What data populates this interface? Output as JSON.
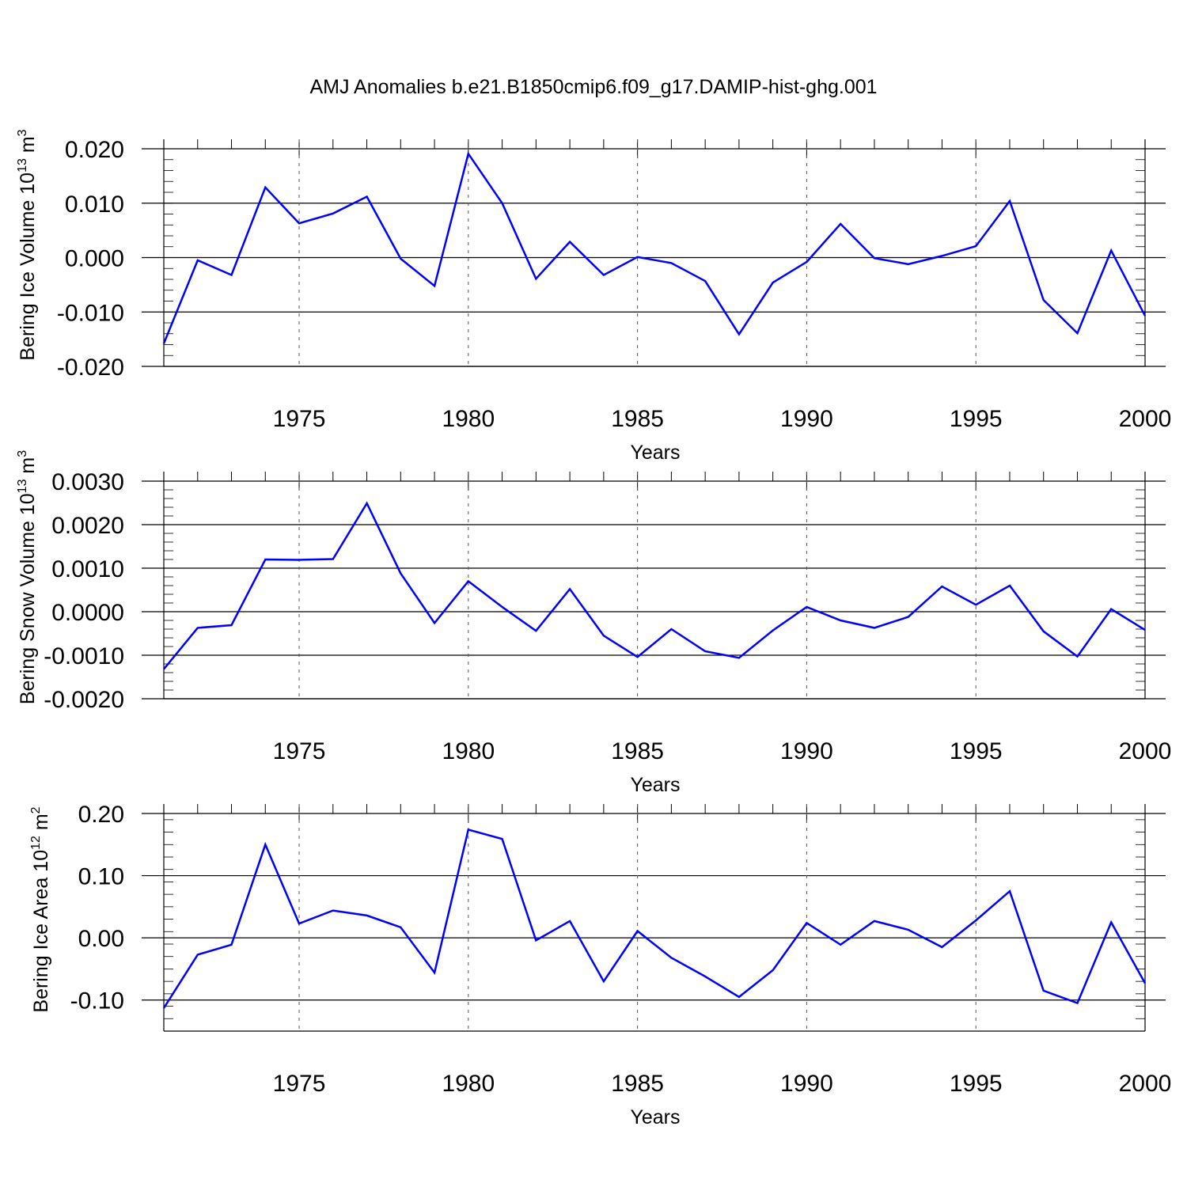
{
  "title": "AMJ Anomalies b.e21.B1850cmip6.f09_g17.DAMIP-hist-ghg.001",
  "colors": {
    "line": "#0000ff",
    "axis": "#000000",
    "grid": "#555555"
  },
  "chart_data": [
    {
      "type": "line",
      "xlabel": "Years",
      "ylabel": {
        "text": "Bering Ice Volume 10",
        "exp": "13",
        "unit": "m",
        "unit_exp": "3"
      },
      "xlim": [
        1971,
        2000
      ],
      "ylim": [
        -0.02,
        0.02
      ],
      "x_ticks": [
        1975,
        1980,
        1985,
        1990,
        1995,
        2000
      ],
      "y_ticks": [
        0.02,
        0.01,
        0.0,
        -0.01,
        -0.02
      ],
      "y_tick_labels": [
        "0.020",
        "0.010",
        "0.000",
        "-0.010",
        "-0.020"
      ],
      "vertical_grid": true,
      "x": [
        1971,
        1972,
        1973,
        1974,
        1975,
        1976,
        1977,
        1978,
        1979,
        1980,
        1981,
        1982,
        1983,
        1984,
        1985,
        1986,
        1987,
        1988,
        1989,
        1990,
        1991,
        1992,
        1993,
        1994,
        1995,
        1996,
        1997,
        1998,
        1999,
        2000
      ],
      "values": [
        -0.0158,
        -0.0005,
        -0.0032,
        0.0129,
        0.0063,
        0.0081,
        0.0112,
        -0.0002,
        -0.0052,
        0.0191,
        0.01,
        -0.0039,
        0.0029,
        -0.0032,
        0.0001,
        -0.001,
        -0.0043,
        -0.0141,
        -0.0046,
        -0.0008,
        0.0062,
        -0.0001,
        -0.0012,
        0.0003,
        0.0021,
        0.0104,
        -0.0078,
        -0.0139,
        0.0013,
        -0.0107
      ]
    },
    {
      "type": "line",
      "xlabel": "Years",
      "ylabel": {
        "text": "Bering Snow Volume 10",
        "exp": "13",
        "unit": "m",
        "unit_exp": "3"
      },
      "xlim": [
        1971,
        2000
      ],
      "ylim": [
        -0.002,
        0.003
      ],
      "x_ticks": [
        1975,
        1980,
        1985,
        1990,
        1995,
        2000
      ],
      "y_ticks": [
        0.003,
        0.002,
        0.001,
        0.0,
        -0.001,
        -0.002
      ],
      "y_tick_labels": [
        "0.0030",
        "0.0020",
        "0.0010",
        "0.0000",
        "-0.0010",
        "-0.0020"
      ],
      "vertical_grid": true,
      "x": [
        1971,
        1972,
        1973,
        1974,
        1975,
        1976,
        1977,
        1978,
        1979,
        1980,
        1981,
        1982,
        1983,
        1984,
        1985,
        1986,
        1987,
        1988,
        1989,
        1990,
        1991,
        1992,
        1993,
        1994,
        1995,
        1996,
        1997,
        1998,
        1999,
        2000
      ],
      "values": [
        -0.00132,
        -0.00037,
        -0.00031,
        0.0012,
        0.00119,
        0.00121,
        0.00249,
        0.00088,
        -0.00026,
        0.0007,
        0.00011,
        -0.00044,
        0.00052,
        -0.00055,
        -0.00104,
        -0.0004,
        -0.00091,
        -0.00106,
        -0.00043,
        0.00011,
        -0.0002,
        -0.00037,
        -0.00012,
        0.00058,
        0.00016,
        0.0006,
        -0.00045,
        -0.00103,
        6e-05,
        -0.00042
      ]
    },
    {
      "type": "line",
      "xlabel": "Years",
      "ylabel": {
        "text": "Bering Ice Area 10",
        "exp": "12",
        "unit": "m",
        "unit_exp": "2"
      },
      "xlim": [
        1971,
        2000
      ],
      "ylim": [
        -0.15,
        0.2
      ],
      "x_ticks": [
        1975,
        1980,
        1985,
        1990,
        1995,
        2000
      ],
      "y_ticks": [
        0.2,
        0.1,
        0.0,
        -0.1
      ],
      "y_tick_labels": [
        "0.20",
        "0.10",
        "0.00",
        "-0.10"
      ],
      "vertical_grid": true,
      "x": [
        1971,
        1972,
        1973,
        1974,
        1975,
        1976,
        1977,
        1978,
        1979,
        1980,
        1981,
        1982,
        1983,
        1984,
        1985,
        1986,
        1987,
        1988,
        1989,
        1990,
        1991,
        1992,
        1993,
        1994,
        1995,
        1996,
        1997,
        1998,
        1999,
        2000
      ],
      "values": [
        -0.113,
        -0.027,
        -0.011,
        0.15,
        0.023,
        0.044,
        0.036,
        0.017,
        -0.056,
        0.174,
        0.159,
        -0.004,
        0.027,
        -0.07,
        0.011,
        -0.032,
        -0.062,
        -0.095,
        -0.052,
        0.024,
        -0.011,
        0.027,
        0.013,
        -0.015,
        0.028,
        0.075,
        -0.085,
        -0.105,
        0.025,
        -0.073
      ]
    }
  ]
}
